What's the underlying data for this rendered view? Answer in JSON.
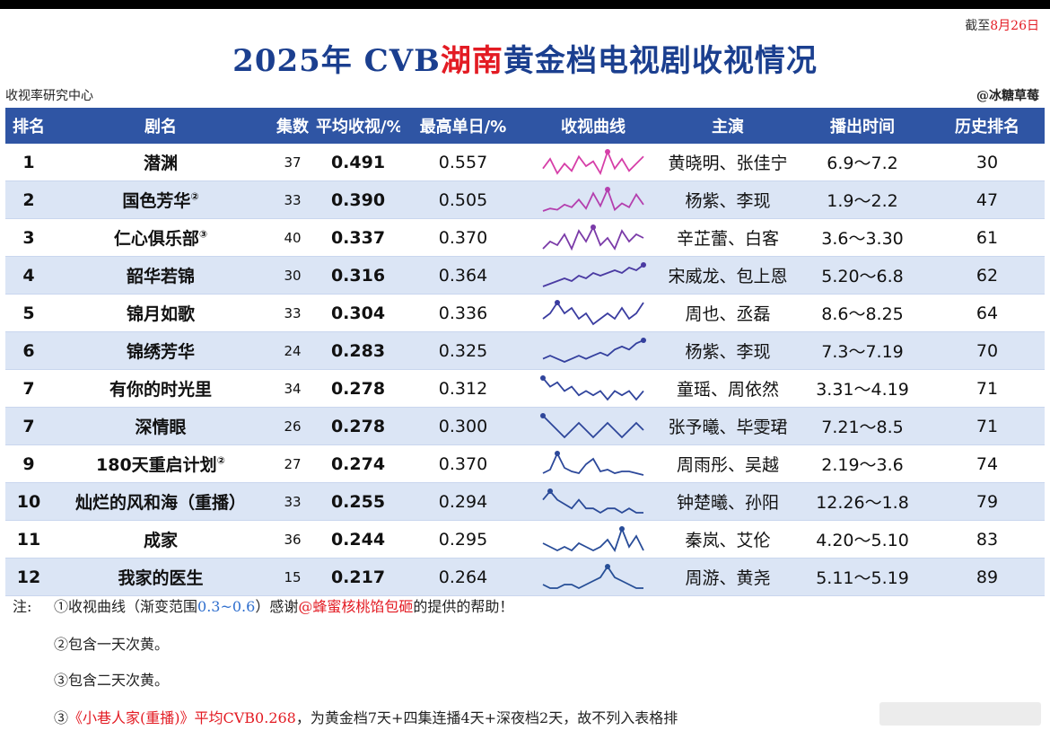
{
  "header": {
    "as_of_prefix": "截至",
    "as_of_date": "8月26日",
    "title_left": "2025年 CVB",
    "title_highlight": "湖南",
    "title_right": "黄金档电视剧收视情况",
    "source_left": "收视率研究中心",
    "source_right": "@冰糖草莓"
  },
  "table": {
    "columns": [
      "排名",
      "剧名",
      "集数",
      "平均收视/%",
      "最高单日/%",
      "收视曲线",
      "主演",
      "播出时间",
      "历史排名"
    ],
    "rows": [
      {
        "rank": "1",
        "name": "潜渊",
        "sup": "",
        "episodes": "37",
        "avg": "0.491",
        "peak": "0.557",
        "cast": "黄晓明、张佳宁",
        "air": "6.9～7.2",
        "hist": "30",
        "color": "#d63fa8",
        "curve": [
          0.48,
          0.52,
          0.46,
          0.5,
          0.47,
          0.53,
          0.49,
          0.51,
          0.46,
          0.55,
          0.48,
          0.52,
          0.47,
          0.5,
          0.53
        ]
      },
      {
        "rank": "2",
        "name": "国色芳华",
        "sup": "②",
        "episodes": "33",
        "avg": "0.390",
        "peak": "0.505",
        "cast": "杨紫、李现",
        "air": "1.9～2.2",
        "hist": "47",
        "color": "#b43fae",
        "curve": [
          0.33,
          0.35,
          0.34,
          0.38,
          0.36,
          0.42,
          0.35,
          0.47,
          0.37,
          0.5,
          0.34,
          0.39,
          0.36,
          0.46,
          0.38
        ]
      },
      {
        "rank": "3",
        "name": "仁心俱乐部",
        "sup": "③",
        "episodes": "40",
        "avg": "0.337",
        "peak": "0.370",
        "cast": "辛芷蕾、白客",
        "air": "3.6～3.30",
        "hist": "61",
        "color": "#7a3aa8",
        "curve": [
          0.31,
          0.33,
          0.32,
          0.35,
          0.31,
          0.36,
          0.33,
          0.37,
          0.32,
          0.34,
          0.31,
          0.36,
          0.33,
          0.35,
          0.34
        ]
      },
      {
        "rank": "4",
        "name": "韶华若锦",
        "sup": "",
        "episodes": "30",
        "avg": "0.316",
        "peak": "0.364",
        "cast": "宋威龙、包上恩",
        "air": "5.20～6.8",
        "hist": "62",
        "color": "#4a3aa2",
        "curve": [
          0.28,
          0.29,
          0.3,
          0.31,
          0.3,
          0.32,
          0.31,
          0.33,
          0.32,
          0.33,
          0.34,
          0.33,
          0.35,
          0.34,
          0.36
        ]
      },
      {
        "rank": "5",
        "name": "锦月如歌",
        "sup": "",
        "episodes": "33",
        "avg": "0.304",
        "peak": "0.336",
        "cast": "周也、丞磊",
        "air": "8.6～8.25",
        "hist": "64",
        "color": "#3a3ca0",
        "curve": [
          0.3,
          0.31,
          0.33,
          0.31,
          0.32,
          0.3,
          0.31,
          0.29,
          0.3,
          0.31,
          0.3,
          0.32,
          0.3,
          0.31,
          0.33
        ]
      },
      {
        "rank": "6",
        "name": "锦绣芳华",
        "sup": "",
        "episodes": "24",
        "avg": "0.283",
        "peak": "0.325",
        "cast": "杨紫、李现",
        "air": "7.3～7.19",
        "hist": "70",
        "color": "#34409e",
        "curve": [
          0.27,
          0.28,
          0.27,
          0.26,
          0.27,
          0.28,
          0.27,
          0.28,
          0.29,
          0.28,
          0.3,
          0.31,
          0.3,
          0.32,
          0.33
        ]
      },
      {
        "rank": "7",
        "name": "有你的时光里",
        "sup": "",
        "episodes": "34",
        "avg": "0.278",
        "peak": "0.312",
        "cast": "童瑶、周依然",
        "air": "3.31～4.19",
        "hist": "71",
        "color": "#30449c",
        "curve": [
          0.31,
          0.29,
          0.3,
          0.28,
          0.29,
          0.27,
          0.28,
          0.27,
          0.28,
          0.26,
          0.28,
          0.27,
          0.28,
          0.26,
          0.28
        ]
      },
      {
        "rank": "7",
        "name": "深情眼",
        "sup": "",
        "episodes": "26",
        "avg": "0.278",
        "peak": "0.300",
        "cast": "张予曦、毕雯珺",
        "air": "7.21～8.5",
        "hist": "71",
        "color": "#2e469a",
        "curve": [
          0.3,
          0.29,
          0.28,
          0.27,
          0.28,
          0.29,
          0.28,
          0.27,
          0.28,
          0.29,
          0.28,
          0.27,
          0.28,
          0.29,
          0.28
        ]
      },
      {
        "rank": "9",
        "name": "180天重启计划",
        "sup": "②",
        "episodes": "27",
        "avg": "0.274",
        "peak": "0.370",
        "cast": "周雨彤、吴越",
        "air": "2.19～3.6",
        "hist": "74",
        "color": "#2c489a",
        "curve": [
          0.26,
          0.28,
          0.37,
          0.29,
          0.27,
          0.26,
          0.31,
          0.34,
          0.27,
          0.28,
          0.26,
          0.27,
          0.27,
          0.26,
          0.25
        ]
      },
      {
        "rank": "10",
        "name": "灿烂的风和海（重播）",
        "sup": "",
        "episodes": "33",
        "avg": "0.255",
        "peak": "0.294",
        "cast": "钟楚曦、孙阳",
        "air": "12.26～1.8",
        "hist": "79",
        "color": "#2a4a98",
        "curve": [
          0.27,
          0.29,
          0.27,
          0.26,
          0.25,
          0.27,
          0.25,
          0.25,
          0.24,
          0.25,
          0.25,
          0.24,
          0.25,
          0.24,
          0.24
        ]
      },
      {
        "rank": "11",
        "name": "成家",
        "sup": "",
        "episodes": "36",
        "avg": "0.244",
        "peak": "0.295",
        "cast": "秦岚、艾伦",
        "air": "4.20～5.10",
        "hist": "83",
        "color": "#284c98",
        "curve": [
          0.25,
          0.24,
          0.23,
          0.24,
          0.23,
          0.25,
          0.24,
          0.23,
          0.24,
          0.26,
          0.23,
          0.29,
          0.24,
          0.27,
          0.23
        ]
      },
      {
        "rank": "12",
        "name": "我家的医生",
        "sup": "",
        "episodes": "15",
        "avg": "0.217",
        "peak": "0.264",
        "cast": "周游、黄尧",
        "air": "5.11～5.19",
        "hist": "89",
        "color": "#264e96",
        "curve": [
          0.21,
          0.2,
          0.2,
          0.21,
          0.21,
          0.2,
          0.21,
          0.22,
          0.23,
          0.26,
          0.23,
          0.22,
          0.21,
          0.2,
          0.2
        ]
      }
    ]
  },
  "notes": {
    "label": "注:",
    "n1_a": "①收视曲线（渐变范围",
    "n1_range": "0.3~0.6",
    "n1_b": "）感谢",
    "n1_user": "@蜂蜜核桃馅包砸",
    "n1_c": "的提供的帮助！",
    "n2": "②包含一天次黄。",
    "n3": "③包含二天次黄。",
    "n4_a": "③",
    "n4_title": "《小巷人家(重播)》平均CVB0.268",
    "n4_b": "，为黄金档7天+四集连播4天+深夜档2天，故不列入表格排"
  }
}
